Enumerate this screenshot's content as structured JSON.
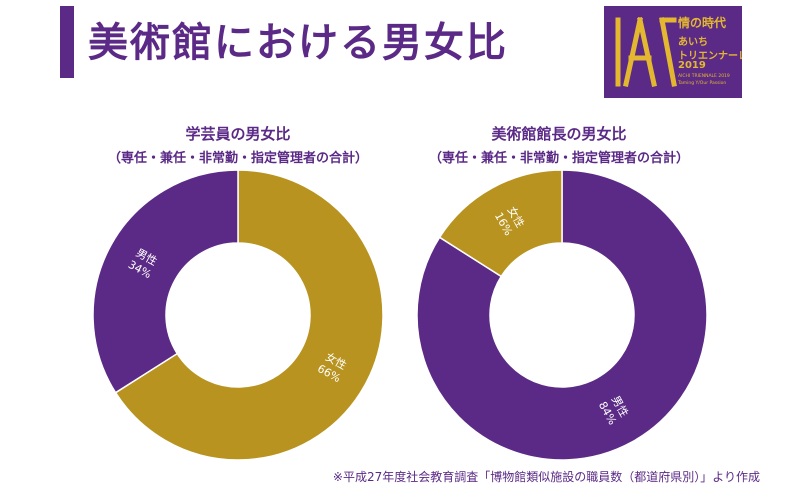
{
  "page": {
    "title": "美術館における男女比",
    "note": "※平成27年度社会教育調査「博物館類似施設の職員数（都道府県別）」より作成"
  },
  "logo": {
    "line1": "情の時代",
    "line2": "あいち",
    "line3": "トリエンナーレ",
    "line4": "2019",
    "line5": "AICHI TRIENNALE 2019",
    "line6": "Taming Y/Our Passion"
  },
  "colors": {
    "purple": "#5b2a86",
    "gold": "#b8931f",
    "label_text": "#ffffff"
  },
  "chart_data": [
    {
      "type": "pie",
      "donut": true,
      "title": "学芸員の男女比",
      "subtitle": "（専任・兼任・非常勤・指定管理者の合計）",
      "slices": [
        {
          "label": "女性",
          "value": 66,
          "value_label": "66%",
          "color": "#b8931f"
        },
        {
          "label": "男性",
          "value": 34,
          "value_label": "34%",
          "color": "#5b2a86"
        }
      ]
    },
    {
      "type": "pie",
      "donut": true,
      "title": "美術館館長の男女比",
      "subtitle": "（専任・兼任・非常勤・指定管理者の合計）",
      "slices": [
        {
          "label": "男性",
          "value": 84,
          "value_label": "84%",
          "color": "#5b2a86"
        },
        {
          "label": "女性",
          "value": 16,
          "value_label": "16%",
          "color": "#b8931f"
        }
      ]
    }
  ]
}
